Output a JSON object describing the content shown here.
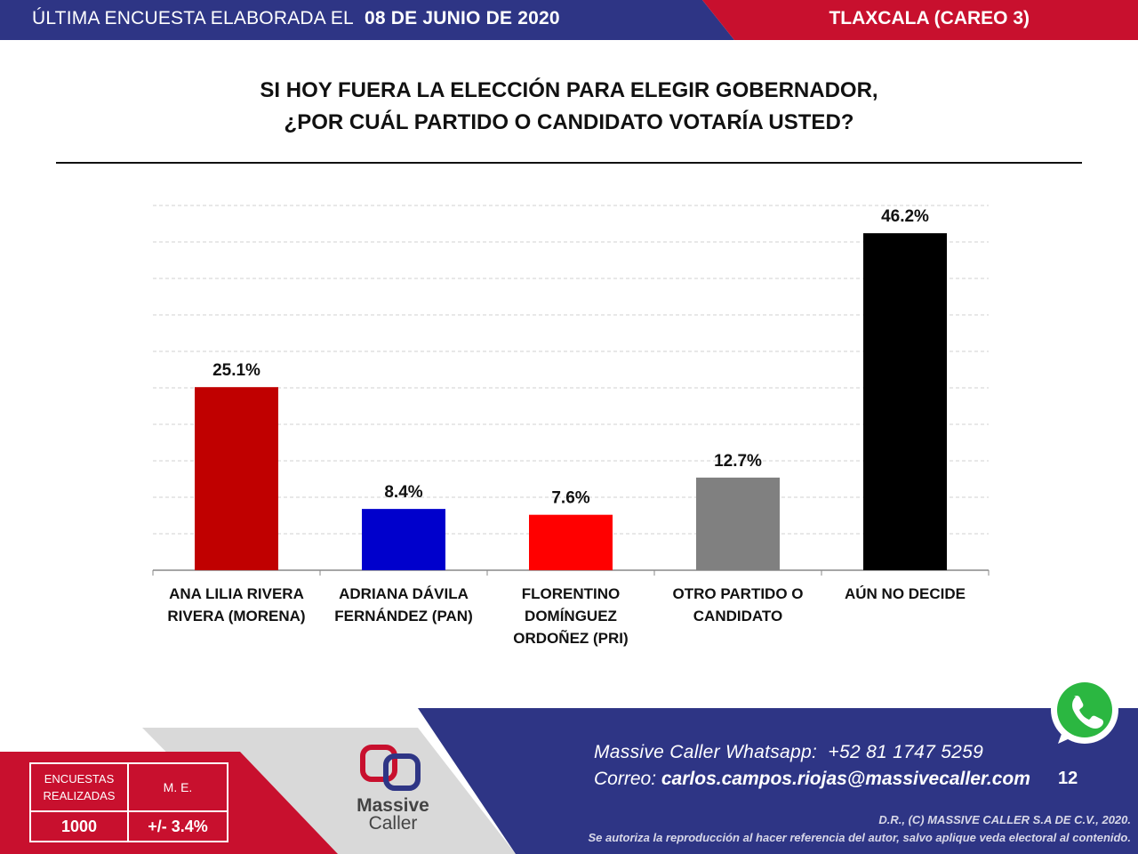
{
  "header": {
    "survey_label": "ÚLTIMA ENCUESTA ELABORADA EL",
    "survey_date": "08 DE JUNIO DE 2020",
    "region": "TLAXCALA (CAREO 3)"
  },
  "question": {
    "line1": "SI HOY FUERA LA ELECCIÓN PARA ELEGIR GOBERNADOR,",
    "line2": "¿POR CUÁL PARTIDO O CANDIDATO VOTARÍA USTED?"
  },
  "chart_data": {
    "type": "bar",
    "categories": [
      [
        "ANA LILIA RIVERA",
        "RIVERA (MORENA)"
      ],
      [
        "ADRIANA DÁVILA",
        "FERNÁNDEZ (PAN)"
      ],
      [
        "FLORENTINO",
        "DOMÍNGUEZ",
        "ORDOÑEZ (PRI)"
      ],
      [
        "OTRO PARTIDO O",
        "CANDIDATO"
      ],
      [
        "AÚN NO DECIDE"
      ]
    ],
    "values": [
      25.1,
      8.4,
      7.6,
      12.7,
      46.2
    ],
    "value_labels": [
      "25.1%",
      "8.4%",
      "7.6%",
      "12.7%",
      "46.2%"
    ],
    "colors": [
      "#c00000",
      "#0000cc",
      "#ff0000",
      "#808080",
      "#000000"
    ],
    "ylim": [
      0,
      50
    ],
    "gridlines": "dashed",
    "title": "",
    "xlabel": "",
    "ylabel": ""
  },
  "footer": {
    "whatsapp_label": "Massive Caller Whatsapp:",
    "whatsapp_number": "+52 81 1747 5259",
    "email_label": "Correo:",
    "email": "carlos.campos.riojas@massivecaller.com",
    "page_number": "12",
    "copyright": "D.R., (C) MASSIVE CALLER S.A DE C.V., 2020.",
    "notice": "Se autoriza la reproducción al hacer referencia del autor, salvo aplique veda electoral al contenido."
  },
  "stats": {
    "surveys_label": "ENCUESTAS REALIZADAS",
    "me_label": "M. E.",
    "surveys_value": "1000",
    "me_value": "+/- 3.4%"
  },
  "logo": {
    "line1": "Massive",
    "line2": "Caller"
  },
  "icons": {
    "whatsapp": "whatsapp-icon"
  },
  "colors": {
    "header_blue": "#2b3a8c",
    "header_red": "#c8102e",
    "footer_blue": "#2e3585",
    "footer_red": "#c8102e"
  }
}
